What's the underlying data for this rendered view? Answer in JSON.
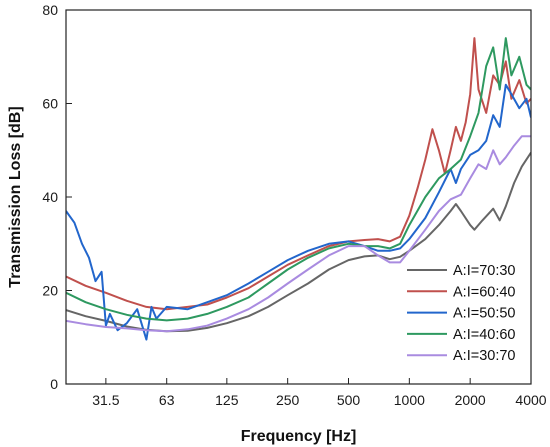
{
  "chart_data": {
    "type": "line",
    "xlabel": "Frequency [Hz]",
    "ylabel": "Transmission Loss [dB]",
    "x_scale": "log",
    "xlim": [
      20,
      4000
    ],
    "ylim": [
      0,
      80
    ],
    "x_ticks": [
      31.5,
      63,
      125,
      250,
      500,
      1000,
      2000,
      4000
    ],
    "x_tick_labels": [
      "31.5",
      "63",
      "125",
      "250",
      "500",
      "1000",
      "2000",
      "4000"
    ],
    "y_ticks": [
      0,
      20,
      40,
      60,
      80
    ],
    "y_tick_labels": [
      "0",
      "20",
      "40",
      "60",
      "80"
    ],
    "grid": false,
    "legend_position": "bottom-right",
    "series": [
      {
        "name": "A:I=70:30",
        "color": "#666666",
        "points": [
          [
            20,
            15.8
          ],
          [
            25,
            14.5
          ],
          [
            31.5,
            13.5
          ],
          [
            40,
            12.3
          ],
          [
            50,
            11.6
          ],
          [
            63,
            11.3
          ],
          [
            80,
            11.4
          ],
          [
            100,
            12.0
          ],
          [
            125,
            13.0
          ],
          [
            160,
            14.5
          ],
          [
            200,
            16.5
          ],
          [
            250,
            19.0
          ],
          [
            315,
            21.5
          ],
          [
            400,
            24.5
          ],
          [
            500,
            26.5
          ],
          [
            600,
            27.3
          ],
          [
            700,
            27.5
          ],
          [
            800,
            26.7
          ],
          [
            900,
            27.2
          ],
          [
            1000,
            28.5
          ],
          [
            1200,
            31.0
          ],
          [
            1400,
            34.0
          ],
          [
            1600,
            37.0
          ],
          [
            1700,
            38.5
          ],
          [
            1800,
            37.0
          ],
          [
            2000,
            34.0
          ],
          [
            2100,
            33.0
          ],
          [
            2300,
            35.0
          ],
          [
            2600,
            37.5
          ],
          [
            2800,
            35.0
          ],
          [
            3000,
            38.0
          ],
          [
            3300,
            43.0
          ],
          [
            3600,
            46.5
          ],
          [
            4000,
            49.5
          ]
        ]
      },
      {
        "name": "A:I=60:40",
        "color": "#C0504D",
        "points": [
          [
            20,
            23.0
          ],
          [
            25,
            21.0
          ],
          [
            31.5,
            19.5
          ],
          [
            40,
            17.8
          ],
          [
            50,
            16.5
          ],
          [
            63,
            16.0
          ],
          [
            80,
            16.5
          ],
          [
            100,
            17.0
          ],
          [
            125,
            18.5
          ],
          [
            160,
            20.5
          ],
          [
            200,
            23.0
          ],
          [
            250,
            25.5
          ],
          [
            315,
            27.5
          ],
          [
            400,
            29.5
          ],
          [
            500,
            30.5
          ],
          [
            600,
            30.8
          ],
          [
            700,
            31.0
          ],
          [
            800,
            30.5
          ],
          [
            900,
            31.5
          ],
          [
            1000,
            36.0
          ],
          [
            1100,
            42.0
          ],
          [
            1200,
            48.0
          ],
          [
            1300,
            54.5
          ],
          [
            1400,
            50.0
          ],
          [
            1500,
            45.0
          ],
          [
            1600,
            50.0
          ],
          [
            1700,
            55.0
          ],
          [
            1800,
            52.0
          ],
          [
            1900,
            56.0
          ],
          [
            2000,
            62.0
          ],
          [
            2100,
            74.0
          ],
          [
            2200,
            63.0
          ],
          [
            2400,
            58.0
          ],
          [
            2600,
            66.0
          ],
          [
            2800,
            64.0
          ],
          [
            3000,
            69.0
          ],
          [
            3200,
            61.0
          ],
          [
            3500,
            65.0
          ],
          [
            3800,
            60.0
          ],
          [
            4000,
            61.0
          ]
        ]
      },
      {
        "name": "A:I=50:50",
        "color": "#2266CC",
        "points": [
          [
            20,
            37.0
          ],
          [
            22,
            34.5
          ],
          [
            24,
            30.0
          ],
          [
            26,
            27.0
          ],
          [
            28,
            22.0
          ],
          [
            30,
            24.0
          ],
          [
            31.5,
            12.5
          ],
          [
            33,
            15.0
          ],
          [
            36,
            11.5
          ],
          [
            40,
            13.0
          ],
          [
            45,
            16.0
          ],
          [
            50,
            9.5
          ],
          [
            53,
            16.5
          ],
          [
            56,
            14.0
          ],
          [
            63,
            16.5
          ],
          [
            80,
            16.0
          ],
          [
            100,
            17.5
          ],
          [
            125,
            19.0
          ],
          [
            160,
            21.5
          ],
          [
            200,
            24.0
          ],
          [
            250,
            26.5
          ],
          [
            315,
            28.5
          ],
          [
            400,
            30.0
          ],
          [
            500,
            30.5
          ],
          [
            600,
            29.5
          ],
          [
            700,
            28.5
          ],
          [
            800,
            28.5
          ],
          [
            900,
            29.0
          ],
          [
            1000,
            31.0
          ],
          [
            1200,
            35.5
          ],
          [
            1400,
            41.0
          ],
          [
            1600,
            46.0
          ],
          [
            1700,
            43.0
          ],
          [
            1800,
            46.0
          ],
          [
            2000,
            49.0
          ],
          [
            2200,
            50.0
          ],
          [
            2400,
            52.0
          ],
          [
            2600,
            57.5
          ],
          [
            2800,
            55.0
          ],
          [
            3000,
            64.0
          ],
          [
            3200,
            62.0
          ],
          [
            3500,
            59.0
          ],
          [
            3800,
            61.0
          ],
          [
            4000,
            57.0
          ]
        ]
      },
      {
        "name": "A:I=40:60",
        "color": "#2E9960",
        "points": [
          [
            20,
            19.5
          ],
          [
            25,
            17.5
          ],
          [
            31.5,
            16.0
          ],
          [
            40,
            14.8
          ],
          [
            50,
            14.0
          ],
          [
            63,
            13.6
          ],
          [
            80,
            14.0
          ],
          [
            100,
            15.0
          ],
          [
            125,
            16.5
          ],
          [
            160,
            18.5
          ],
          [
            200,
            21.5
          ],
          [
            250,
            24.5
          ],
          [
            315,
            27.0
          ],
          [
            400,
            29.0
          ],
          [
            500,
            30.0
          ],
          [
            600,
            29.5
          ],
          [
            700,
            29.5
          ],
          [
            800,
            29.0
          ],
          [
            900,
            30.0
          ],
          [
            1000,
            34.0
          ],
          [
            1200,
            40.0
          ],
          [
            1400,
            44.0
          ],
          [
            1600,
            46.0
          ],
          [
            1800,
            48.0
          ],
          [
            2000,
            53.0
          ],
          [
            2200,
            58.0
          ],
          [
            2400,
            68.0
          ],
          [
            2600,
            72.0
          ],
          [
            2800,
            63.0
          ],
          [
            3000,
            74.0
          ],
          [
            3200,
            66.0
          ],
          [
            3500,
            70.0
          ],
          [
            3800,
            64.0
          ],
          [
            4000,
            63.0
          ]
        ]
      },
      {
        "name": "A:I=30:70",
        "color": "#A98BE0",
        "points": [
          [
            20,
            13.5
          ],
          [
            25,
            12.8
          ],
          [
            31.5,
            12.2
          ],
          [
            40,
            11.9
          ],
          [
            50,
            11.5
          ],
          [
            63,
            11.3
          ],
          [
            80,
            11.7
          ],
          [
            100,
            12.5
          ],
          [
            125,
            14.0
          ],
          [
            160,
            16.0
          ],
          [
            200,
            18.5
          ],
          [
            250,
            21.5
          ],
          [
            315,
            24.5
          ],
          [
            400,
            27.5
          ],
          [
            500,
            29.5
          ],
          [
            600,
            29.5
          ],
          [
            700,
            27.5
          ],
          [
            800,
            26.0
          ],
          [
            900,
            26.0
          ],
          [
            1000,
            28.5
          ],
          [
            1200,
            33.0
          ],
          [
            1400,
            37.0
          ],
          [
            1600,
            39.5
          ],
          [
            1800,
            40.5
          ],
          [
            2000,
            44.0
          ],
          [
            2200,
            47.0
          ],
          [
            2400,
            46.0
          ],
          [
            2600,
            50.0
          ],
          [
            2800,
            47.0
          ],
          [
            3000,
            48.5
          ],
          [
            3300,
            51.0
          ],
          [
            3600,
            53.0
          ],
          [
            4000,
            53.0
          ]
        ]
      }
    ]
  }
}
